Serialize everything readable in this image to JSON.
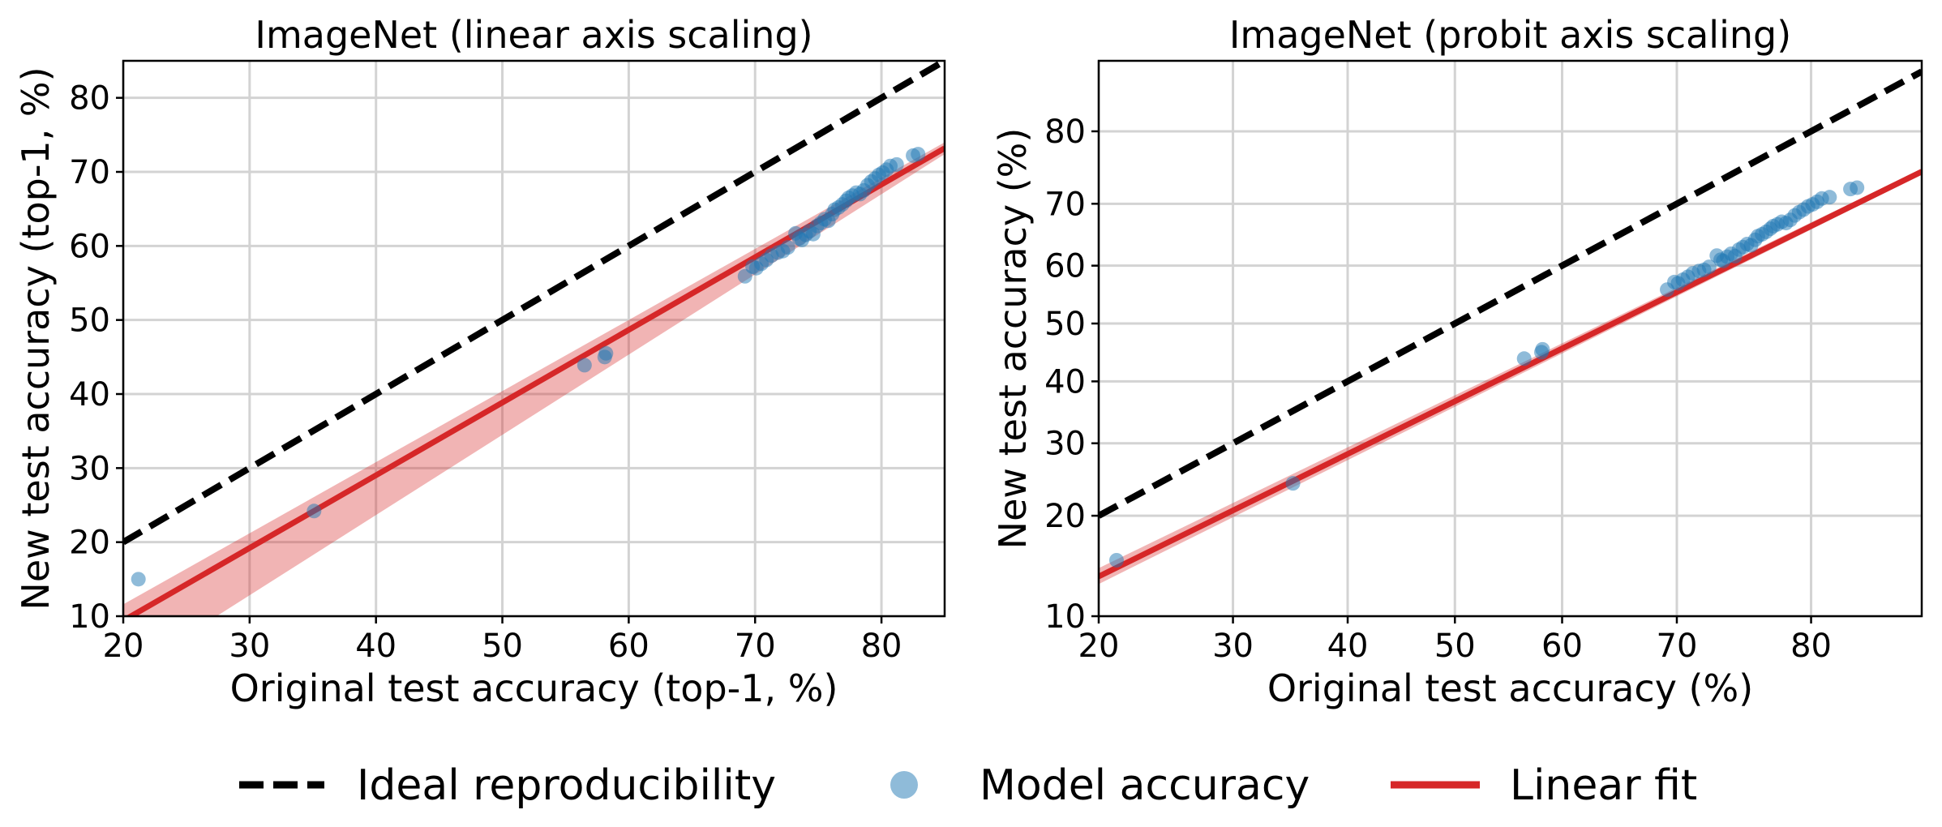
{
  "chart_data": [
    {
      "type": "scatter",
      "title": "ImageNet (linear axis scaling)",
      "xlabel": "Original test accuracy (top-1, %)",
      "ylabel": "New test accuracy (top-1, %)",
      "xscale": "linear",
      "yscale": "linear",
      "xlim": [
        20,
        85
      ],
      "ylim": [
        10,
        85
      ],
      "xticks": [
        20,
        30,
        40,
        50,
        60,
        70,
        80
      ],
      "yticks": [
        10,
        20,
        30,
        40,
        50,
        60,
        70,
        80
      ],
      "grid": true,
      "series": [
        {
          "name": "Ideal reproducibility",
          "kind": "line",
          "style": "dashed",
          "color": "#000000",
          "x": [
            20,
            85
          ],
          "y": [
            20,
            85
          ]
        },
        {
          "name": "Linear fit",
          "kind": "line",
          "style": "solid",
          "color": "#d62728",
          "x": [
            20,
            85
          ],
          "y": [
            9.4,
            73.2
          ],
          "band_low": [
            2.0,
            72.4
          ],
          "band_high": [
            11.6,
            74.0
          ]
        },
        {
          "name": "Model accuracy",
          "kind": "scatter",
          "color": "#1f77b4",
          "x": [
            21.2,
            35.1,
            56.5,
            58.1,
            58.2,
            69.2,
            69.8,
            70.1,
            70.5,
            70.9,
            71.3,
            71.8,
            72.2,
            72.6,
            73.2,
            73.5,
            73.7,
            74.0,
            74.3,
            74.6,
            74.9,
            75.2,
            75.5,
            75.8,
            76.1,
            76.3,
            76.6,
            76.9,
            77.2,
            77.4,
            77.7,
            78.0,
            78.3,
            78.6,
            78.9,
            79.2,
            79.5,
            79.8,
            80.1,
            80.4,
            80.7,
            81.2,
            82.5,
            82.9
          ],
          "y": [
            15.0,
            24.2,
            43.9,
            45.0,
            45.5,
            55.9,
            57.2,
            57.0,
            57.6,
            58.1,
            58.7,
            59.1,
            59.3,
            59.8,
            61.7,
            61.0,
            60.8,
            61.5,
            62.0,
            61.6,
            62.7,
            63.1,
            63.6,
            63.4,
            64.3,
            64.9,
            65.2,
            65.6,
            66.1,
            66.5,
            66.8,
            67.2,
            67.0,
            67.5,
            68.2,
            68.7,
            69.1,
            69.6,
            69.9,
            70.3,
            70.8,
            71.0,
            72.2,
            72.4
          ]
        }
      ]
    },
    {
      "type": "scatter",
      "title": "ImageNet (probit axis scaling)",
      "xlabel": "Original test accuracy (%)",
      "ylabel": "New test accuracy (%)",
      "xscale": "probit",
      "yscale": "probit",
      "xlim": [
        20,
        86.5
      ],
      "ylim": [
        10,
        87.5
      ],
      "xticks": [
        20,
        30,
        40,
        50,
        60,
        70,
        80
      ],
      "yticks": [
        10,
        20,
        30,
        40,
        50,
        60,
        70,
        80
      ],
      "grid": true,
      "series": [
        {
          "name": "Ideal reproducibility",
          "kind": "line",
          "style": "dashed",
          "color": "#000000",
          "x": [
            20,
            86.5
          ],
          "y": [
            20,
            86.5
          ]
        },
        {
          "name": "Linear fit",
          "kind": "line",
          "style": "solid",
          "color": "#d62728",
          "x": [
            20,
            86.5
          ],
          "y": [
            13.4,
            74.7
          ],
          "band_low": [
            12.7,
            74.3
          ],
          "band_high": [
            14.2,
            75.1
          ]
        },
        {
          "name": "Model accuracy",
          "kind": "scatter",
          "color": "#1f77b4",
          "x": [
            21.2,
            35.1,
            56.5,
            58.1,
            58.2,
            69.2,
            69.8,
            70.1,
            70.5,
            70.9,
            71.3,
            71.8,
            72.2,
            72.6,
            73.2,
            73.5,
            73.7,
            74.0,
            74.3,
            74.6,
            74.9,
            75.2,
            75.5,
            75.8,
            76.1,
            76.3,
            76.6,
            76.9,
            77.2,
            77.4,
            77.7,
            78.0,
            78.3,
            78.6,
            78.9,
            79.2,
            79.5,
            79.8,
            80.1,
            80.4,
            80.7,
            81.2,
            82.5,
            82.9
          ],
          "y": [
            15.0,
            24.2,
            43.9,
            45.0,
            45.5,
            55.9,
            57.2,
            57.0,
            57.6,
            58.1,
            58.7,
            59.1,
            59.3,
            59.8,
            61.7,
            61.0,
            60.8,
            61.5,
            62.0,
            61.6,
            62.7,
            63.1,
            63.6,
            63.4,
            64.3,
            64.9,
            65.2,
            65.6,
            66.1,
            66.5,
            66.8,
            67.2,
            67.0,
            67.5,
            68.2,
            68.7,
            69.1,
            69.6,
            69.9,
            70.3,
            70.8,
            71.0,
            72.2,
            72.4
          ]
        }
      ]
    }
  ],
  "legend": {
    "placement": "bottom",
    "items": [
      {
        "label": "Ideal reproducibility",
        "marker": "dashed-line",
        "color": "#000000"
      },
      {
        "label": "Model accuracy",
        "marker": "circle",
        "color": "#1f77b4"
      },
      {
        "label": "Linear fit",
        "marker": "solid-line",
        "color": "#d62728"
      }
    ]
  }
}
